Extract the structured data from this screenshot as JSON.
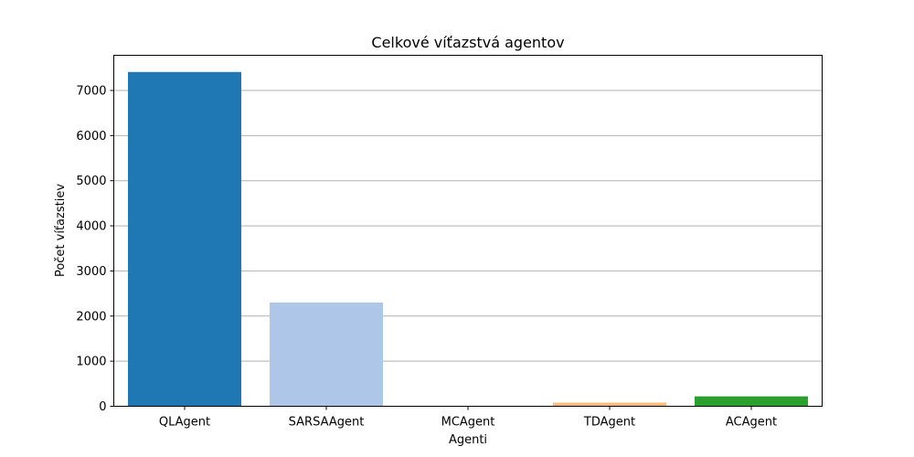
{
  "chart_data": {
    "type": "bar",
    "title": "Celkové víťazstvá agentov",
    "xlabel": "Agenti",
    "ylabel": "Počet víťazstiev",
    "categories": [
      "QLAgent",
      "SARSAAgent",
      "MCAgent",
      "TDAgent",
      "ACAgent"
    ],
    "values": [
      7410,
      2300,
      0,
      80,
      220
    ],
    "colors": [
      "#1f77b4",
      "#aec7e8",
      "#ff7f0e",
      "#ffbb78",
      "#2ca02c"
    ],
    "ylim": [
      0,
      7780
    ],
    "yticks": [
      0,
      1000,
      2000,
      3000,
      4000,
      5000,
      6000,
      7000
    ],
    "grid": "y"
  }
}
